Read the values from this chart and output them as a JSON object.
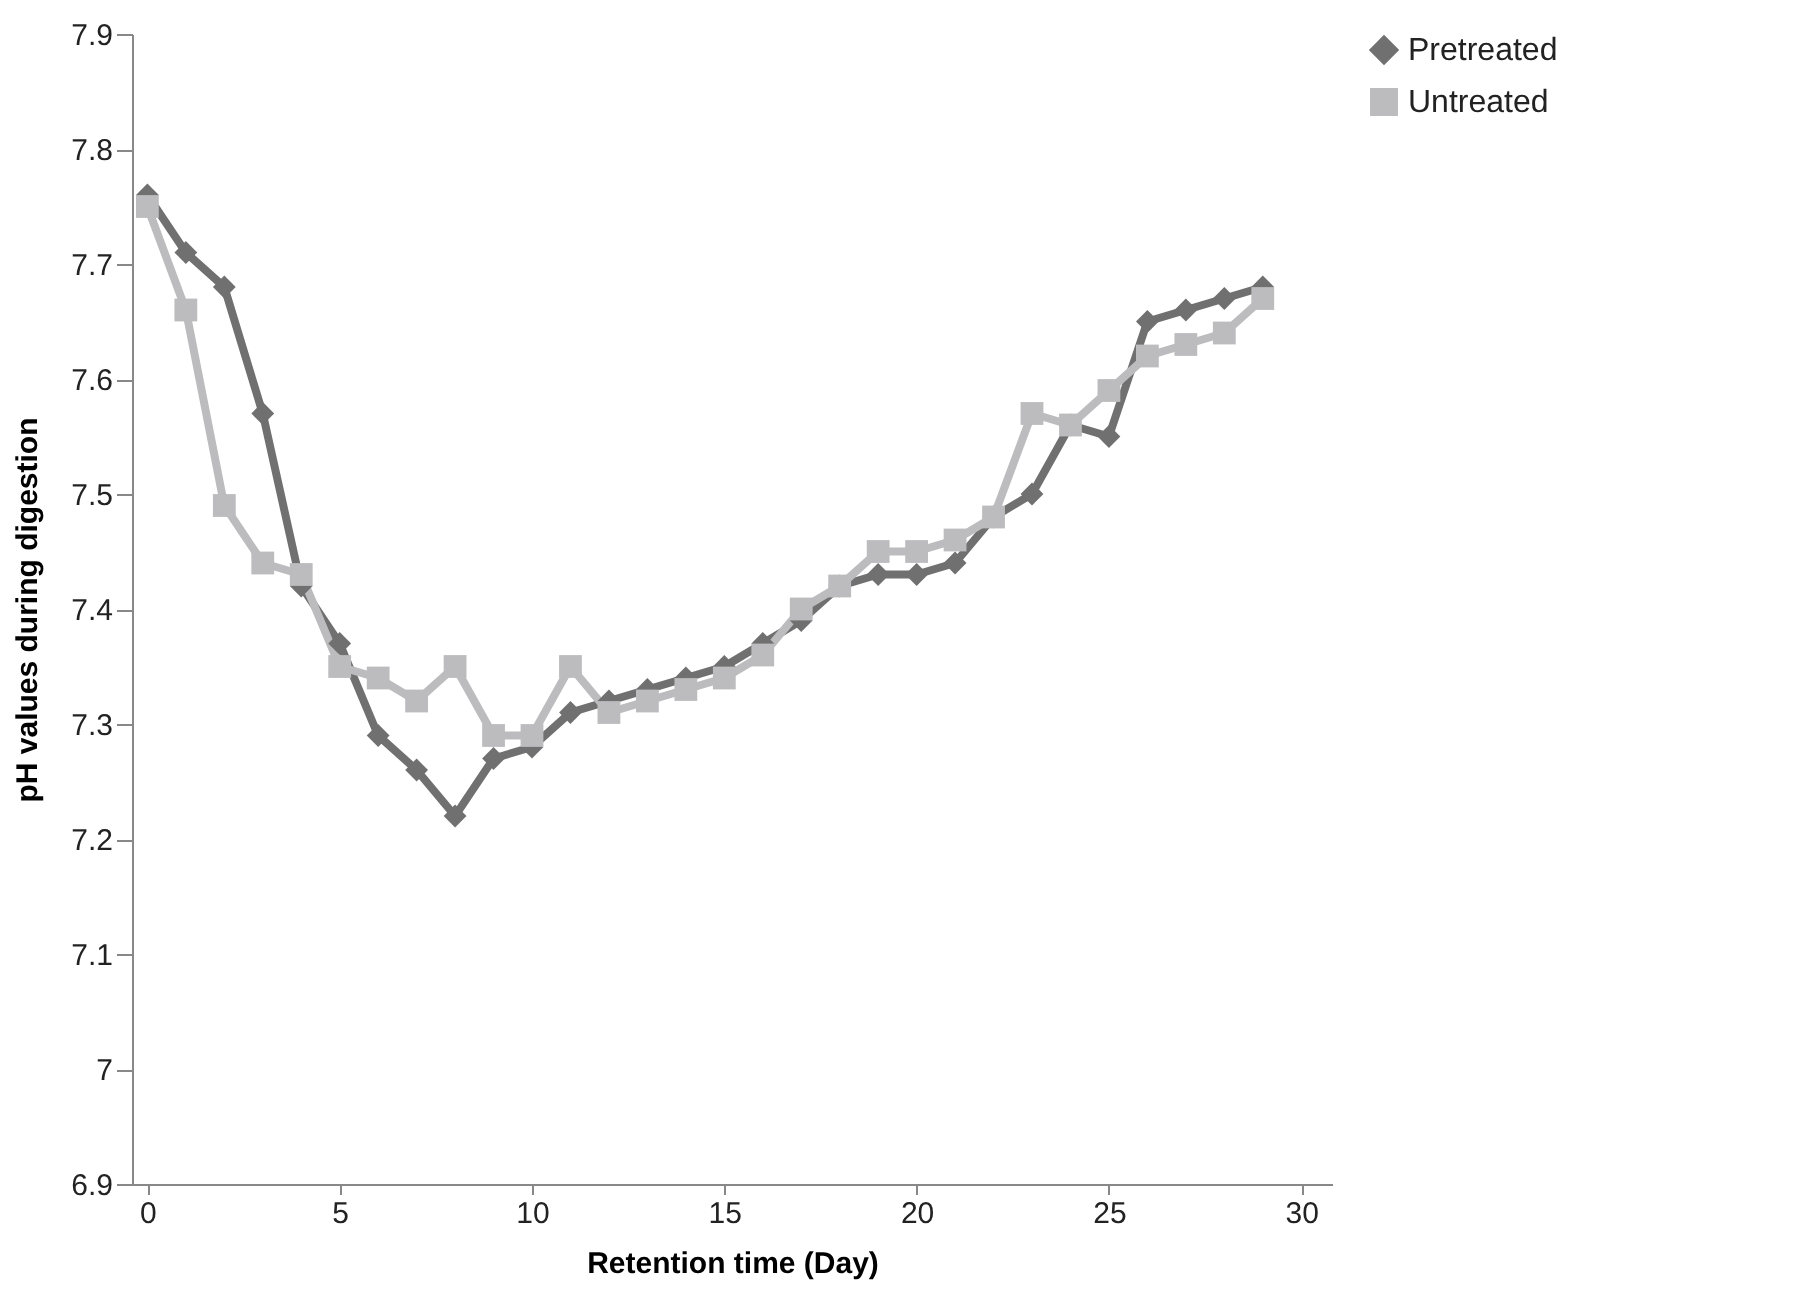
{
  "chart_data": {
    "type": "line",
    "xlabel": "Retention time (Day)",
    "ylabel": "pH values during digestion",
    "x": [
      0,
      1,
      2,
      3,
      4,
      5,
      6,
      7,
      8,
      9,
      10,
      11,
      12,
      13,
      14,
      15,
      16,
      17,
      18,
      19,
      20,
      21,
      22,
      23,
      24,
      25,
      26,
      27,
      28,
      29
    ],
    "series": [
      {
        "name": "Pretreated",
        "color": "#707070",
        "marker": "diamond",
        "values": [
          7.76,
          7.71,
          7.68,
          7.57,
          7.42,
          7.37,
          7.29,
          7.26,
          7.22,
          7.27,
          7.28,
          7.31,
          7.32,
          7.33,
          7.34,
          7.35,
          7.37,
          7.39,
          7.42,
          7.43,
          7.43,
          7.44,
          7.48,
          7.5,
          7.56,
          7.55,
          7.65,
          7.66,
          7.67,
          7.68
        ]
      },
      {
        "name": "Untreated",
        "color": "#bcbcbe",
        "marker": "square",
        "values": [
          7.75,
          7.66,
          7.49,
          7.44,
          7.43,
          7.35,
          7.34,
          7.32,
          7.35,
          7.29,
          7.29,
          7.35,
          7.31,
          7.32,
          7.33,
          7.34,
          7.36,
          7.4,
          7.42,
          7.45,
          7.45,
          7.46,
          7.48,
          7.57,
          7.56,
          7.59,
          7.62,
          7.63,
          7.64,
          7.67
        ]
      }
    ],
    "xlim": [
      -0.4,
      30.8
    ],
    "xticks": [
      0,
      5,
      10,
      15,
      20,
      25,
      30
    ],
    "ylim": [
      6.9,
      7.9
    ],
    "yticks": [
      6.9,
      7,
      7.1,
      7.2,
      7.3,
      7.4,
      7.5,
      7.6,
      7.7,
      7.8,
      7.9
    ],
    "grid": false,
    "legend": "right",
    "line_style": "solid"
  }
}
